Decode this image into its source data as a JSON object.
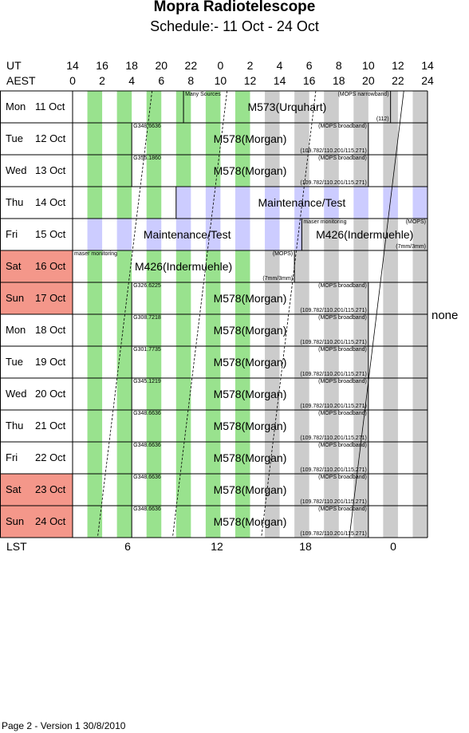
{
  "title": "Mopra Radiotelescope",
  "subtitle": "Schedule:- 11 Oct - 24 Oct",
  "axes": {
    "ut_label": "UT",
    "aest_label": "AEST",
    "lst_label": "LST",
    "ut_ticks": [
      "14",
      "16",
      "18",
      "20",
      "22",
      "0",
      "2",
      "4",
      "6",
      "8",
      "10",
      "12",
      "14"
    ],
    "aest_ticks": [
      "0",
      "2",
      "4",
      "6",
      "8",
      "10",
      "12",
      "14",
      "16",
      "18",
      "20",
      "22",
      "24"
    ],
    "lst_ticks": [
      "6",
      "12",
      "18",
      "0"
    ]
  },
  "colors": {
    "weekend": "#f4978a",
    "maintenance": "#ccccff",
    "green": "#99e28e",
    "gray": "#cccccc",
    "white": "#ffffff"
  },
  "days": [
    {
      "dow": "Mon",
      "date": "11 Oct",
      "weekend": false
    },
    {
      "dow": "Tue",
      "date": "12 Oct",
      "weekend": false
    },
    {
      "dow": "Wed",
      "date": "13 Oct",
      "weekend": false
    },
    {
      "dow": "Thu",
      "date": "14 Oct",
      "weekend": false
    },
    {
      "dow": "Fri",
      "date": "15 Oct",
      "weekend": false
    },
    {
      "dow": "Sat",
      "date": "16 Oct",
      "weekend": true
    },
    {
      "dow": "Sun",
      "date": "17 Oct",
      "weekend": true
    },
    {
      "dow": "Mon",
      "date": "18 Oct",
      "weekend": false
    },
    {
      "dow": "Tue",
      "date": "19 Oct",
      "weekend": false
    },
    {
      "dow": "Wed",
      "date": "20 Oct",
      "weekend": false
    },
    {
      "dow": "Thu",
      "date": "21 Oct",
      "weekend": false
    },
    {
      "dow": "Fri",
      "date": "22 Oct",
      "weekend": false
    },
    {
      "dow": "Sat",
      "date": "23 Oct",
      "weekend": true
    },
    {
      "dow": "Sun",
      "date": "24 Oct",
      "weekend": true
    }
  ],
  "blocks": [
    {
      "row": 0,
      "start": 7.5,
      "end": 21.5,
      "label": "M573(Urquhart)",
      "fill": "stripes",
      "tl": "Many Sources",
      "tr": "(MOPS narrowband)",
      "br": "(112)"
    },
    {
      "row": 1,
      "start": 4,
      "end": 20,
      "label": "M578(Morgan)",
      "fill": "stripes",
      "tl": "G348.6636",
      "tr": "(MOPS broadband)",
      "br": "(109.782/110.201/115.271)"
    },
    {
      "row": 2,
      "start": 4,
      "end": 20,
      "label": "M578(Morgan)",
      "fill": "stripes",
      "tl": "G356.1860",
      "tr": "(MOPS broadband)",
      "br": "(109.782/110.201/115.271)"
    },
    {
      "row": 3,
      "start": 7,
      "end": 24,
      "label": "Maintenance/Test",
      "fill": "maintenance",
      "tl": "",
      "tr": "",
      "br": ""
    },
    {
      "row": 4,
      "start": 0,
      "end": 15.5,
      "label": "Maintenance/Test",
      "fill": "maintenance",
      "tl": "",
      "tr": "",
      "br": ""
    },
    {
      "row": 4,
      "start": 15.5,
      "end": 24,
      "label": "M426(Indermuehle)",
      "fill": "stripes",
      "tl": "maser monitoring",
      "tr": "(MOPS)",
      "br": "(7mm/3mm)"
    },
    {
      "row": 5,
      "start": 0,
      "end": 15,
      "label": "M426(Indermuehle)",
      "fill": "stripes",
      "tl": "maser monitoring",
      "tr": "(MOPS)",
      "br": "(7mm/3mm)"
    },
    {
      "row": 6,
      "start": 4,
      "end": 20,
      "label": "M578(Morgan)",
      "fill": "stripes",
      "tl": "G326.6225",
      "tr": "(MOPS broadband)",
      "br": "(109.782/110.201/115.271)"
    },
    {
      "row": 7,
      "start": 4,
      "end": 20,
      "label": "M578(Morgan)",
      "fill": "stripes",
      "tl": "G308.7218",
      "tr": "(MOPS broadband)",
      "br": "(109.782/110.201/115.271)"
    },
    {
      "row": 8,
      "start": 4,
      "end": 20,
      "label": "M578(Morgan)",
      "fill": "stripes",
      "tl": "G301.7735",
      "tr": "(MOPS broadband)",
      "br": "(109.782/110.201/115.271)"
    },
    {
      "row": 9,
      "start": 4,
      "end": 20,
      "label": "M578(Morgan)",
      "fill": "stripes",
      "tl": "G345.1219",
      "tr": "(MOPS broadband)",
      "br": "(109.782/110.201/115.271)"
    },
    {
      "row": 10,
      "start": 4,
      "end": 20,
      "label": "M578(Morgan)",
      "fill": "stripes",
      "tl": "G348.6636",
      "tr": "(MOPS broadband)",
      "br": "(109.782/110.201/115.271)"
    },
    {
      "row": 11,
      "start": 4,
      "end": 20,
      "label": "M578(Morgan)",
      "fill": "stripes",
      "tl": "G348.6636",
      "tr": "(MOPS broadband)",
      "br": "(109.782/110.201/115.271)"
    },
    {
      "row": 12,
      "start": 4,
      "end": 20,
      "label": "M578(Morgan)",
      "fill": "stripes",
      "tl": "G348.6636",
      "tr": "(MOPS broadband)",
      "br": "(109.782/110.201/115.271)"
    },
    {
      "row": 13,
      "start": 4,
      "end": 20,
      "label": "M578(Morgan)",
      "fill": "stripes",
      "tl": "G348.6636",
      "tr": "(MOPS broadband)",
      "br": "(109.782/110.201/115.271)"
    }
  ],
  "right_note": "none",
  "footer": "Page 2 - Version 1  30/8/2010"
}
